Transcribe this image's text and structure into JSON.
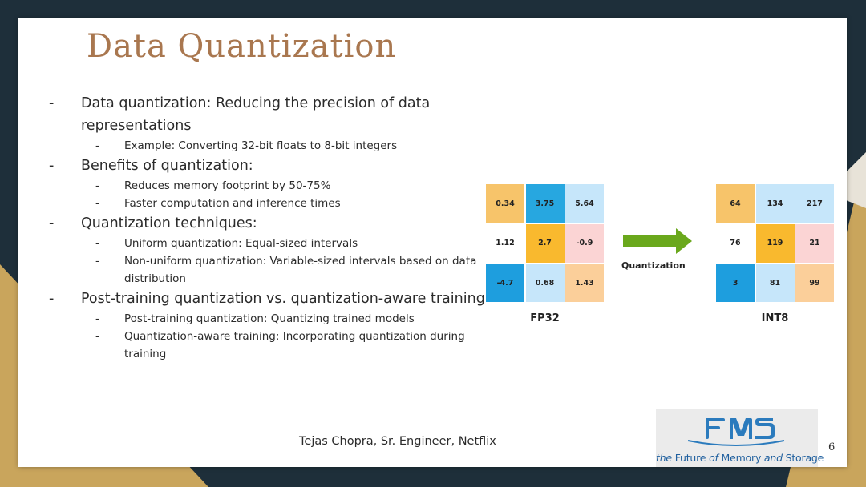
{
  "slide": {
    "title": "Data Quantization",
    "bullets": [
      {
        "text": "Data quantization: Reducing the precision of data representations",
        "sub": [
          "Example: Converting 32-bit floats to 8-bit integers"
        ]
      },
      {
        "text": "Benefits of quantization:",
        "sub": [
          "Reduces memory footprint by 50-75%",
          "Faster computation and inference times"
        ]
      },
      {
        "text": "Quantization techniques:",
        "sub": [
          "Uniform quantization: Equal-sized intervals",
          "Non-uniform quantization: Variable-sized intervals based on data distribution"
        ]
      },
      {
        "text": "Post-training quantization vs. quantization-aware training",
        "sub": [
          "Post-training quantization: Quantizing trained models",
          "Quantization-aware training: Incorporating quantization during training"
        ]
      }
    ],
    "bullet_marker": "-",
    "footer": "Tejas Chopra, Sr. Engineer, Netflix",
    "page_number": "6"
  },
  "figure": {
    "fp32": {
      "label": "FP32",
      "cells": [
        {
          "v": "0.34",
          "c": "#f7c46a"
        },
        {
          "v": "3.75",
          "c": "#27a7e0"
        },
        {
          "v": "5.64",
          "c": "#c6e6fa"
        },
        {
          "v": "1.12",
          "c": "#ffffff"
        },
        {
          "v": "2.7",
          "c": "#f9b92e"
        },
        {
          "v": "-0.9",
          "c": "#fbd4d4"
        },
        {
          "v": "-4.7",
          "c": "#1e9ede"
        },
        {
          "v": "0.68",
          "c": "#c6e6fa"
        },
        {
          "v": "1.43",
          "c": "#fbcf9a"
        }
      ]
    },
    "arrow_label": "Quantization",
    "arrow_color": "#6aa81c",
    "int8": {
      "label": "INT8",
      "cells": [
        {
          "v": "64",
          "c": "#f7c46a"
        },
        {
          "v": "134",
          "c": "#c6e6fa"
        },
        {
          "v": "217",
          "c": "#c6e6fa"
        },
        {
          "v": "76",
          "c": "#ffffff"
        },
        {
          "v": "119",
          "c": "#f9b92e"
        },
        {
          "v": "21",
          "c": "#fbd4d4"
        },
        {
          "v": "3",
          "c": "#1e9ede"
        },
        {
          "v": "81",
          "c": "#c6e6fa"
        },
        {
          "v": "99",
          "c": "#fbcf9a"
        }
      ]
    }
  },
  "logo": {
    "mark": "FMS",
    "tagline_parts": [
      "the ",
      "Future ",
      "of ",
      "Memory ",
      "and ",
      "Storage"
    ]
  },
  "colors": {
    "title": "#a9774f",
    "background_dark": "#1e2f3a",
    "background_gold": "#c9a55c",
    "logo_blue": "#1f5f9e"
  }
}
